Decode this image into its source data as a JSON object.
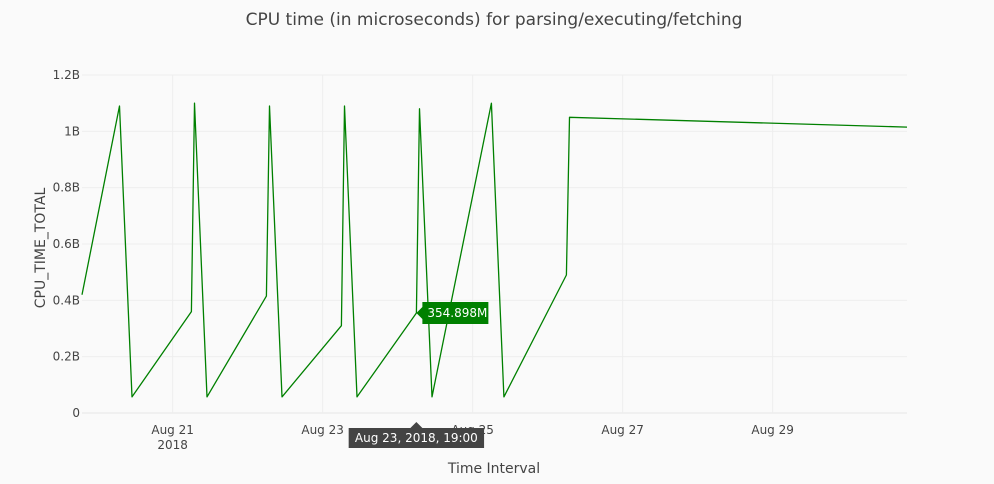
{
  "chart_data": {
    "type": "line",
    "title": "CPU time (in microseconds) for parsing/executing/fetching",
    "xlabel": "Time Interval",
    "ylabel": "CPU_TIME_TOTAL",
    "ylim": [
      0,
      1200000000
    ],
    "y_ticks": [
      {
        "value": 0,
        "label": "0"
      },
      {
        "value": 200000000,
        "label": "0.2B"
      },
      {
        "value": 400000000,
        "label": "0.4B"
      },
      {
        "value": 600000000,
        "label": "0.6B"
      },
      {
        "value": 800000000,
        "label": "0.8B"
      },
      {
        "value": 1000000000,
        "label": "1B"
      },
      {
        "value": 1200000000,
        "label": "1.2B"
      }
    ],
    "xlim": [
      "2018-08-19T19:00",
      "2018-08-30T19:00"
    ],
    "x_ticks": [
      {
        "value": "2018-08-21T00:00",
        "label": "Aug 21",
        "sublabel": "2018"
      },
      {
        "value": "2018-08-23T00:00",
        "label": "Aug 23",
        "sublabel": ""
      },
      {
        "value": "2018-08-25T00:00",
        "label": "Aug 25",
        "sublabel": ""
      },
      {
        "value": "2018-08-27T00:00",
        "label": "Aug 27",
        "sublabel": ""
      },
      {
        "value": "2018-08-29T00:00",
        "label": "Aug 29",
        "sublabel": ""
      }
    ],
    "grid": true,
    "line_color": "#008000",
    "series": [
      {
        "points": [
          {
            "x": "2018-08-19T19:00",
            "y": 420000000
          },
          {
            "x": "2018-08-20T07:00",
            "y": 1090000000
          },
          {
            "x": "2018-08-20T11:00",
            "y": 57000000
          },
          {
            "x": "2018-08-21T06:00",
            "y": 360000000
          },
          {
            "x": "2018-08-21T07:00",
            "y": 1100000000
          },
          {
            "x": "2018-08-21T11:00",
            "y": 57000000
          },
          {
            "x": "2018-08-22T06:00",
            "y": 415000000
          },
          {
            "x": "2018-08-22T07:00",
            "y": 1090000000
          },
          {
            "x": "2018-08-22T11:00",
            "y": 57000000
          },
          {
            "x": "2018-08-23T06:00",
            "y": 310000000
          },
          {
            "x": "2018-08-23T07:00",
            "y": 1090000000
          },
          {
            "x": "2018-08-23T11:00",
            "y": 57000000
          },
          {
            "x": "2018-08-24T06:00",
            "y": 354898000
          },
          {
            "x": "2018-08-24T07:00",
            "y": 1080000000
          },
          {
            "x": "2018-08-24T11:00",
            "y": 57000000
          },
          {
            "x": "2018-08-25T06:00",
            "y": 1100000000
          },
          {
            "x": "2018-08-25T10:00",
            "y": 57000000
          },
          {
            "x": "2018-08-26T06:00",
            "y": 490000000
          },
          {
            "x": "2018-08-26T07:00",
            "y": 1050000000
          },
          {
            "x": "2018-08-30T19:00",
            "y": 1015000000
          }
        ]
      }
    ],
    "hover": {
      "x_label": "Aug 23, 2018, 19:00",
      "y_label": "354.898M",
      "point_index": 12
    }
  }
}
